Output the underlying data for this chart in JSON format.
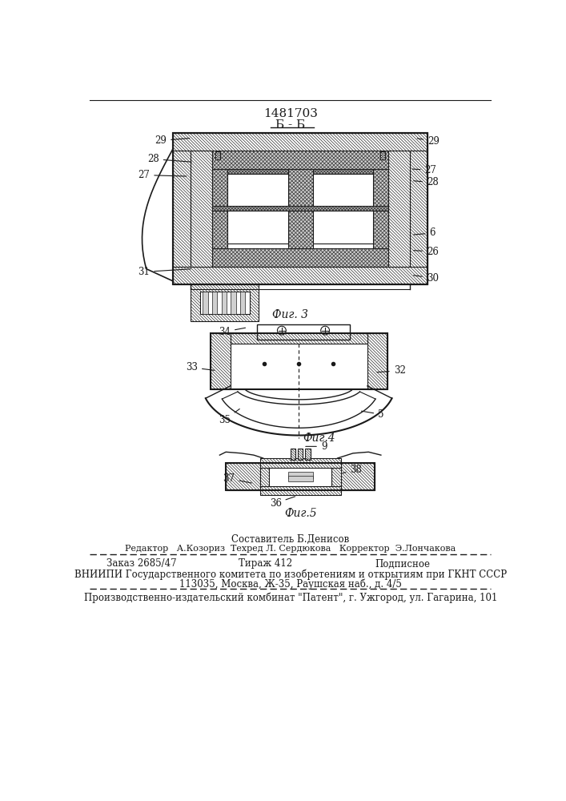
{
  "title_number": "1481703",
  "section_label": "Б - Б",
  "fig3_label": "Фиг. 3",
  "fig4_label": "Фиг.4",
  "fig5_label": "Фиг.5",
  "composer": "Составитель Б.Денисов",
  "editor_line": "Редактор   А.Козориз  Техред Л. Сердюкова   Корректор  Э.Лончакова",
  "order_line": "Заказ 2685/47        Тираж 412                   Подписное",
  "vnipi_line1": "ВНИИПИ Государственного комитета по изобретениям и открытиям при ГКНТ СССР",
  "vnipi_line2": "113035, Москва, Ж-35, Раушская наб., д. 4/5",
  "factory_line": "Производственно-издательский комбинат \"Патент\", г. Ужгород, ул. Гагарина, 101",
  "bg_color": "#ffffff",
  "line_color": "#1a1a1a",
  "hatch_color": "#2a2a2a"
}
